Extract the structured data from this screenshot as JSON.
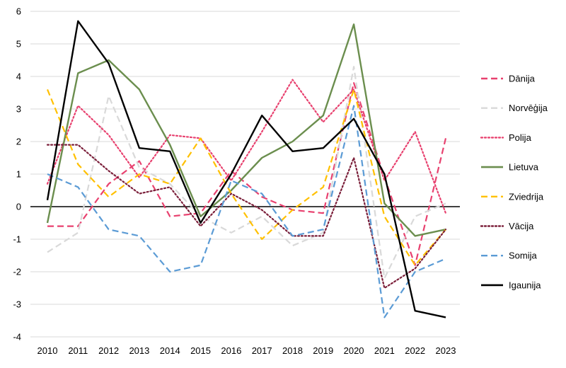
{
  "chart_data": {
    "type": "line",
    "title": "",
    "xlabel": "",
    "ylabel": "",
    "x": [
      2010,
      2011,
      2012,
      2013,
      2014,
      2015,
      2016,
      2017,
      2018,
      2019,
      2020,
      2021,
      2022,
      2023
    ],
    "x_tick_labels": [
      "2010",
      "2011",
      "2012",
      "2013",
      "2014",
      "2015",
      "2016",
      "2017",
      "2018",
      "2019",
      "2020",
      "2021",
      "2022",
      "2023"
    ],
    "ylim": [
      -4,
      6
    ],
    "y_ticks": [
      6,
      5,
      4,
      3,
      2,
      1,
      0,
      -1,
      -2,
      -3,
      -4
    ],
    "y_tick_labels": [
      "6",
      "5",
      "4",
      "3",
      "2",
      "1",
      "0",
      "-1",
      "-2",
      "-3",
      "-4"
    ],
    "grid": true,
    "legend_position": "right",
    "series": [
      {
        "name": "Dānija",
        "color": "#e8416f",
        "style": "dashed",
        "values": [
          -0.6,
          -0.6,
          0.7,
          1.4,
          -0.3,
          -0.2,
          1.1,
          0.3,
          -0.1,
          -0.2,
          3.8,
          0.9,
          -1.8,
          2.1
        ]
      },
      {
        "name": "Norvēģija",
        "color": "#d9d9d9",
        "style": "dashed",
        "values": [
          -1.4,
          -0.8,
          3.4,
          1.2,
          0.7,
          -0.3,
          -0.8,
          -0.3,
          -1.2,
          -0.8,
          4.3,
          -2.2,
          -0.3,
          0.1
        ]
      },
      {
        "name": "Polija",
        "color": "#e8416f",
        "style": "dotted",
        "values": [
          0.7,
          3.1,
          2.2,
          0.9,
          2.2,
          2.1,
          0.8,
          2.3,
          3.9,
          2.6,
          3.6,
          0.8,
          2.3,
          -0.2
        ]
      },
      {
        "name": "Lietuva",
        "color": "#6b8e4e",
        "style": "solid",
        "values": [
          -0.5,
          4.1,
          4.5,
          3.6,
          1.9,
          -0.3,
          0.5,
          1.5,
          2.0,
          2.8,
          5.6,
          0.1,
          -0.9,
          -0.7
        ]
      },
      {
        "name": "Zviedrija",
        "color": "#ffc000",
        "style": "dashed",
        "values": [
          3.6,
          1.3,
          0.3,
          1.0,
          0.7,
          2.1,
          0.4,
          -1.0,
          -0.1,
          0.6,
          3.6,
          -0.3,
          -1.8,
          -0.7
        ]
      },
      {
        "name": "Vācija",
        "color": "#7b1f3a",
        "style": "dotted",
        "values": [
          1.9,
          1.9,
          1.1,
          0.4,
          0.6,
          -0.6,
          0.4,
          -0.1,
          -0.9,
          -0.9,
          1.5,
          -2.5,
          -1.9,
          -0.7
        ]
      },
      {
        "name": "Somija",
        "color": "#5b9bd5",
        "style": "dashed",
        "values": [
          1.0,
          0.6,
          -0.7,
          -0.9,
          -2.0,
          -1.8,
          0.8,
          0.4,
          -0.9,
          -0.7,
          3.1,
          -3.4,
          -2.0,
          -1.6
        ]
      },
      {
        "name": "Igaunija",
        "color": "#000000",
        "style": "solid",
        "values": [
          0.2,
          5.7,
          4.4,
          1.8,
          1.7,
          -0.5,
          1.0,
          2.8,
          1.7,
          1.8,
          2.7,
          1.0,
          -3.2,
          -3.4
        ]
      }
    ]
  }
}
